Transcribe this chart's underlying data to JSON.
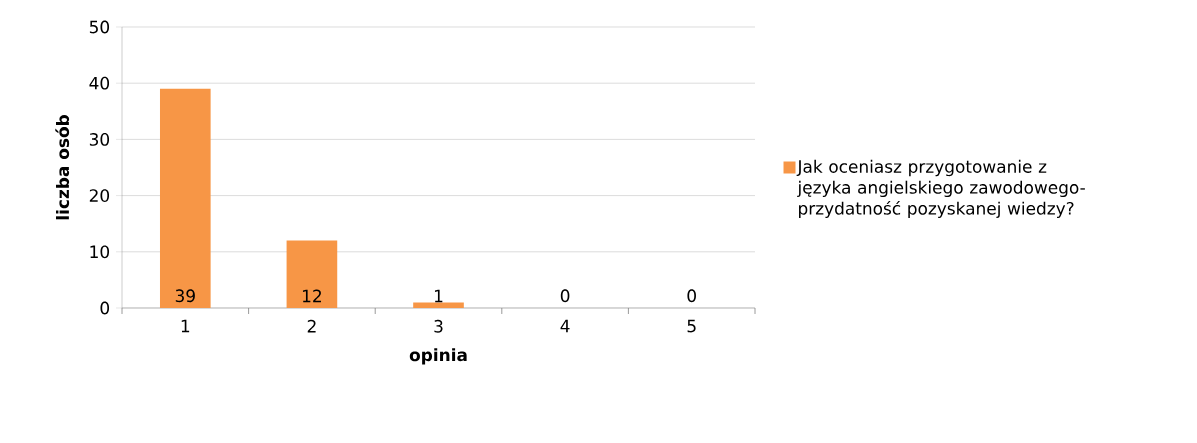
{
  "chart_data": {
    "type": "bar",
    "xlabel": "opinia",
    "ylabel": "liczba osób",
    "categories": [
      "1",
      "2",
      "3",
      "4",
      "5"
    ],
    "series": [
      {
        "name": "Jak oceniasz przygotowanie z języka angielskiego zawodowego- przydatność pozyskanej wiedzy?",
        "color": "#f79646",
        "values": [
          39,
          12,
          1,
          0,
          0
        ]
      }
    ],
    "ylim": [
      0,
      50
    ],
    "yticks": [
      0,
      10,
      20,
      30,
      40,
      50
    ],
    "grid": "y",
    "legend": "right",
    "data_labels": true
  }
}
